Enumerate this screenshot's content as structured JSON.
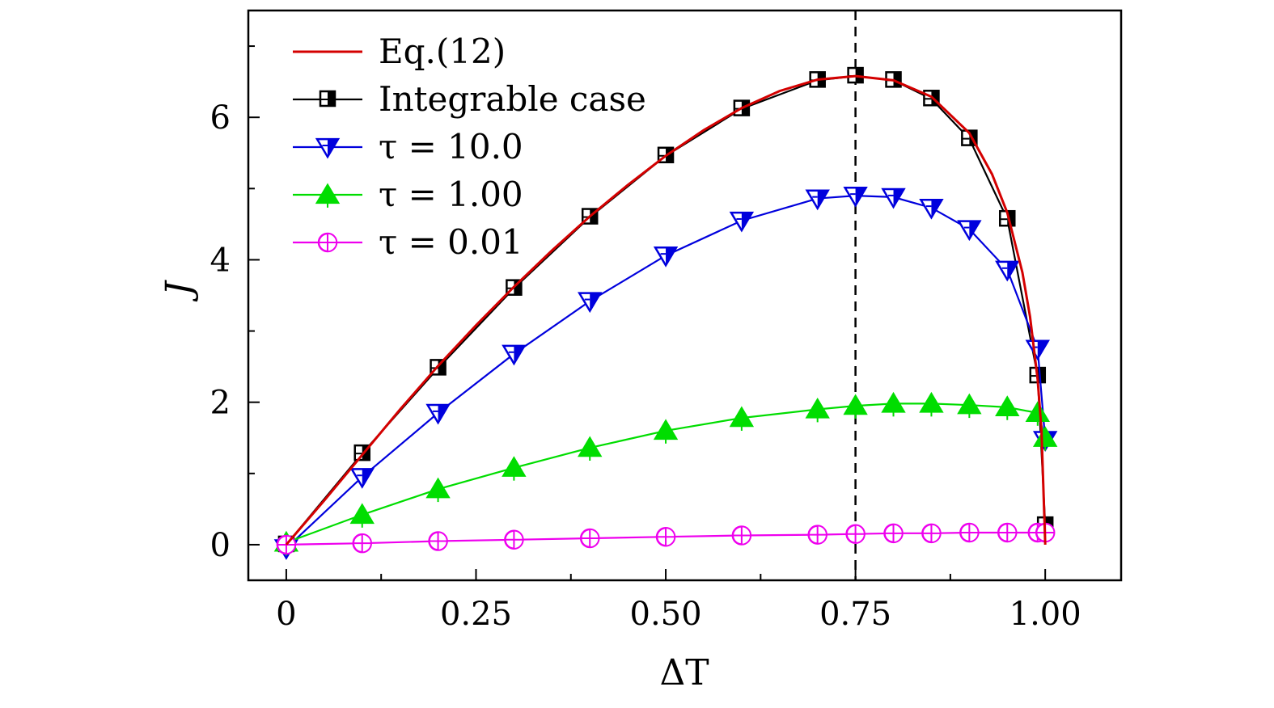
{
  "chart_data": {
    "type": "line",
    "xlabel": "ΔT",
    "ylabel": "J",
    "xlim": [
      -0.05,
      1.1
    ],
    "ylim": [
      -0.5,
      7.5
    ],
    "x_ticks": [
      {
        "value": 0,
        "label": "0"
      },
      {
        "value": 0.25,
        "label": "0.25"
      },
      {
        "value": 0.5,
        "label": "0.50"
      },
      {
        "value": 0.75,
        "label": "0.75"
      },
      {
        "value": 1.0,
        "label": "1.00"
      }
    ],
    "y_ticks": [
      {
        "value": 0,
        "label": "0"
      },
      {
        "value": 2,
        "label": "2"
      },
      {
        "value": 4,
        "label": "4"
      },
      {
        "value": 6,
        "label": "6"
      }
    ],
    "x_minor_ticks": [
      0.125,
      0.375,
      0.625,
      0.875
    ],
    "y_minor_ticks": [
      1,
      3,
      5,
      7
    ],
    "vline": {
      "x": 0.75,
      "style": "dashed",
      "color": "#000000"
    },
    "legend_position": "top-left",
    "grid": false,
    "series": [
      {
        "name": "Eq.(12)",
        "color": "#d40000",
        "marker": "none",
        "x": [
          0,
          0.05,
          0.1,
          0.15,
          0.2,
          0.25,
          0.3,
          0.35,
          0.4,
          0.45,
          0.5,
          0.55,
          0.6,
          0.65,
          0.7,
          0.75,
          0.8,
          0.85,
          0.9,
          0.93,
          0.95,
          0.97,
          0.98,
          0.99,
          0.995,
          1.0
        ],
        "y": [
          0,
          0.62,
          1.26,
          1.9,
          2.51,
          3.08,
          3.62,
          4.13,
          4.61,
          5.05,
          5.46,
          5.82,
          6.13,
          6.37,
          6.53,
          6.58,
          6.52,
          6.29,
          5.78,
          5.2,
          4.66,
          3.82,
          3.2,
          2.32,
          1.62,
          0.0
        ]
      },
      {
        "name": "Integrable case",
        "color": "#000000",
        "marker": "square",
        "x": [
          0,
          0.1,
          0.2,
          0.3,
          0.4,
          0.5,
          0.6,
          0.7,
          0.75,
          0.8,
          0.85,
          0.9,
          0.95,
          0.99,
          1.0
        ],
        "y": [
          0,
          1.28,
          2.48,
          3.6,
          4.6,
          5.46,
          6.12,
          6.52,
          6.58,
          6.52,
          6.26,
          5.7,
          4.57,
          2.37,
          0.27
        ]
      },
      {
        "name": "τ = 10.0",
        "color": "#0000dd",
        "marker": "triangle-down",
        "x": [
          0,
          0.1,
          0.2,
          0.3,
          0.4,
          0.5,
          0.6,
          0.7,
          0.75,
          0.8,
          0.85,
          0.9,
          0.95,
          0.99,
          1.0
        ],
        "y": [
          -0.05,
          0.95,
          1.85,
          2.68,
          3.42,
          4.06,
          4.55,
          4.86,
          4.9,
          4.88,
          4.73,
          4.43,
          3.86,
          2.75,
          1.47
        ]
      },
      {
        "name": "τ = 1.00",
        "color": "#00dd00",
        "marker": "triangle-up",
        "x": [
          0,
          0.1,
          0.2,
          0.3,
          0.4,
          0.5,
          0.6,
          0.7,
          0.75,
          0.8,
          0.85,
          0.9,
          0.95,
          0.99,
          1.0
        ],
        "y": [
          0.03,
          0.42,
          0.78,
          1.08,
          1.36,
          1.6,
          1.78,
          1.9,
          1.95,
          1.98,
          1.98,
          1.96,
          1.93,
          1.85,
          1.5
        ]
      },
      {
        "name": "τ = 0.01",
        "color": "#ee00ee",
        "marker": "circle",
        "x": [
          0,
          0.1,
          0.2,
          0.3,
          0.4,
          0.5,
          0.6,
          0.7,
          0.75,
          0.8,
          0.85,
          0.9,
          0.95,
          0.99,
          1.0
        ],
        "y": [
          0,
          0.02,
          0.05,
          0.07,
          0.09,
          0.11,
          0.13,
          0.14,
          0.15,
          0.16,
          0.16,
          0.17,
          0.17,
          0.17,
          0.17
        ]
      }
    ]
  }
}
